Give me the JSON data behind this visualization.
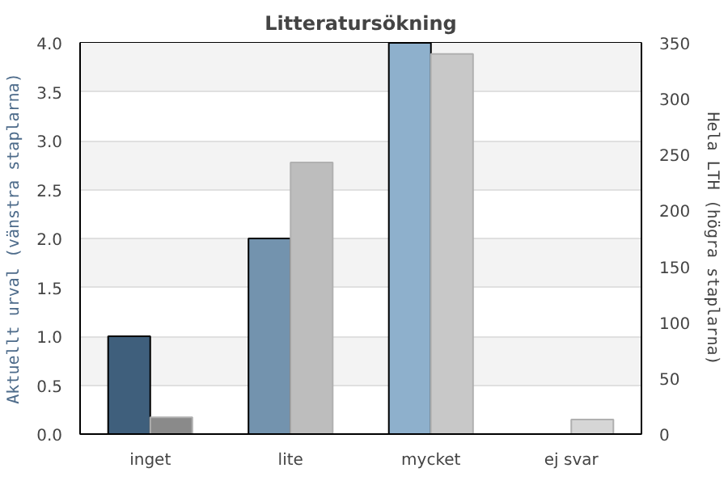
{
  "chart_data": {
    "type": "bar",
    "title": "Litteratursökning",
    "categories": [
      "inget",
      "lite",
      "mycket",
      "ej svar"
    ],
    "ylabel": "Aktuellt urval (vänstra staplarna)",
    "y2label": "Hela LTH (högra staplarna)",
    "ylim": [
      0,
      4
    ],
    "yticks": [
      {
        "value": 0,
        "label": "0.0"
      },
      {
        "value": 0.5,
        "label": "0.5"
      },
      {
        "value": 1,
        "label": "1.0"
      },
      {
        "value": 1.5,
        "label": "1.5"
      },
      {
        "value": 2,
        "label": "2.0"
      },
      {
        "value": 2.5,
        "label": "2.5"
      },
      {
        "value": 3,
        "label": "3.0"
      },
      {
        "value": 3.5,
        "label": "3.5"
      },
      {
        "value": 4,
        "label": "4.0"
      }
    ],
    "y2lim": [
      0,
      350
    ],
    "y2ticks": [
      0,
      50,
      100,
      150,
      200,
      250,
      300,
      350
    ],
    "series": [
      {
        "colors": [
          "#3f5f7c",
          "#7393ae",
          "#8eb0cc",
          "#8eb0cc"
        ],
        "values": [
          1,
          2,
          4,
          0
        ]
      },
      {
        "axis": "y2",
        "colors": [
          "#8a8a8a",
          "#bdbdbd",
          "#c8c8c8",
          "#d6d6d6"
        ],
        "values": [
          15,
          243,
          340,
          13
        ]
      }
    ],
    "bands": [
      {
        "axis": "y",
        "from": 0.5,
        "to": 1,
        "color": "#f3f3f3"
      },
      {
        "axis": "y",
        "from": 1.5,
        "to": 2,
        "color": "#f3f3f3"
      },
      {
        "axis": "y",
        "from": 2.5,
        "to": 3,
        "color": "#f3f3f3"
      },
      {
        "axis": "y",
        "from": 3.5,
        "to": 4,
        "color": "#f3f3f3"
      }
    ],
    "grid": "y"
  }
}
